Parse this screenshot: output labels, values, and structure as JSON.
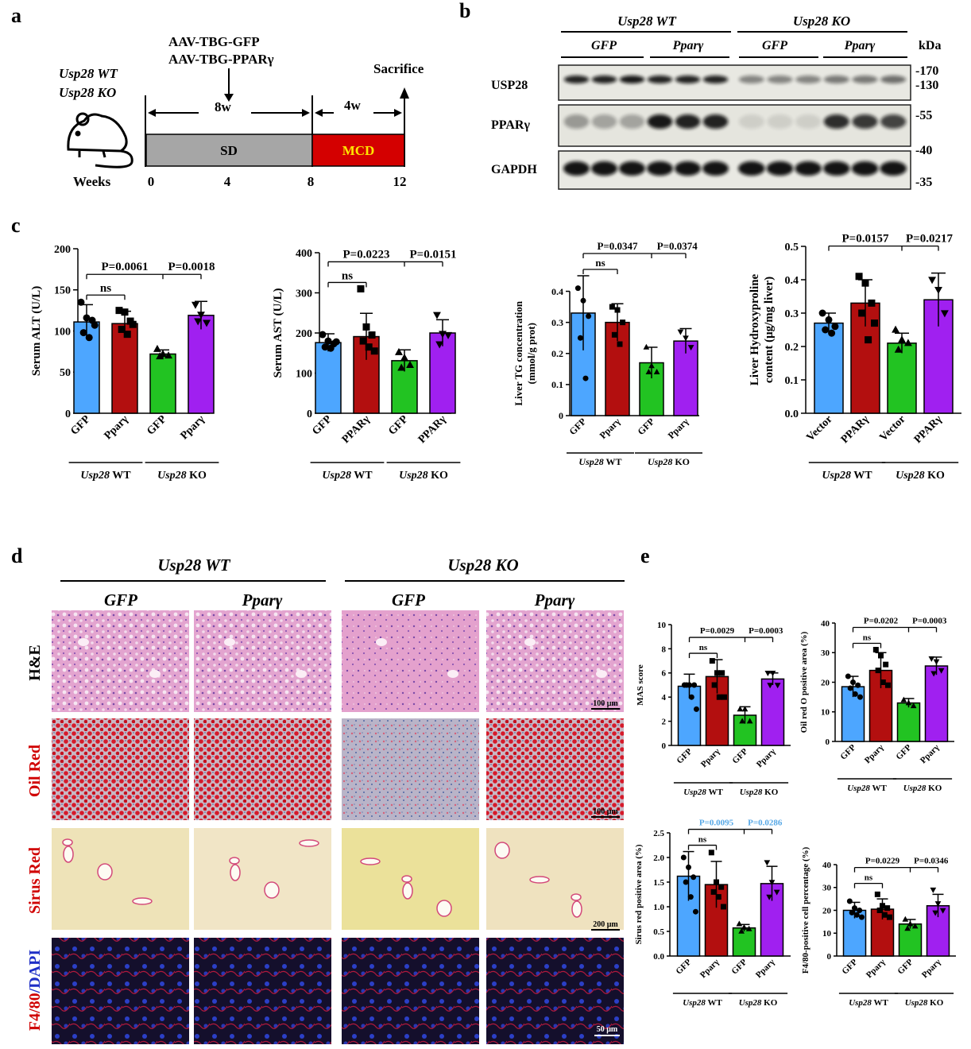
{
  "panel_labels": [
    "a",
    "b",
    "c",
    "d",
    "e"
  ],
  "colors": {
    "gfp_wt": "#4da6ff",
    "ppar_wt": "#b30f0f",
    "gfp_ko": "#22c322",
    "ppar_ko": "#a020f0",
    "sd": "#a6a6a6",
    "mcd": "#d40000",
    "mcd_text": "#ffe600",
    "blue_p": "#57a8e6"
  },
  "panel_a": {
    "genotypes": [
      "Usp28 WT",
      "Usp28 KO"
    ],
    "aav": [
      "AAV-TBG-GFP",
      "AAV-TBG-PPARγ"
    ],
    "sacrifice": "Sacrifice",
    "period1": "8w",
    "period2": "4w",
    "diet1": "SD",
    "diet2": "MCD",
    "weeks_label": "Weeks",
    "ticks": [
      "0",
      "4",
      "8",
      "12"
    ],
    "mouse_icon": "mouse-icon"
  },
  "panel_b": {
    "groups": [
      "Usp28 WT",
      "Usp28 KO"
    ],
    "subgroups": [
      "GFP",
      "Pparγ",
      "GFP",
      "Pparγ"
    ],
    "kda": "kDa",
    "blots": [
      {
        "label": "USP28",
        "markers": [
          "-170",
          "-130"
        ]
      },
      {
        "label": "PPARγ",
        "markers": [
          "-55",
          "-40"
        ]
      },
      {
        "label": "GAPDH",
        "markers": [
          "-35"
        ]
      }
    ]
  },
  "panel_d": {
    "groups": [
      "Usp28 WT",
      "Usp28 KO"
    ],
    "columns": [
      "GFP",
      "Pparγ",
      "GFP",
      "Pparγ"
    ],
    "rows": [
      "H&E",
      "Oil Red",
      "Sirus Red",
      "F4/80",
      "/DAPI"
    ],
    "scale_bars": [
      "100 μm",
      "100 μm",
      "200 μm",
      "50 μm"
    ]
  },
  "chart_data": [
    {
      "id": "alt",
      "type": "bar",
      "ylabel": "Serum ALT (U/L)",
      "ylim": [
        0,
        200
      ],
      "yticks": [
        "0",
        "50",
        "100",
        "150",
        "200"
      ],
      "categories": [
        "GFP",
        "Pparγ",
        "GFP",
        "Pparγ"
      ],
      "groups": [
        "Usp28 WT",
        "Usp28 KO"
      ],
      "values": [
        111,
        109,
        72,
        119
      ],
      "sd": [
        21,
        15,
        5,
        17
      ],
      "points": [
        [
          135,
          116,
          113,
          98,
          92,
          107
        ],
        [
          125,
          123,
          112,
          102,
          96,
          108
        ],
        [
          78,
          72,
          70,
          69
        ],
        [
          132,
          120,
          110,
          112
        ]
      ],
      "ns": "ns",
      "pvalues": [
        "P=0.0061",
        "P=0.0018"
      ]
    },
    {
      "id": "ast",
      "type": "bar",
      "ylabel": "Serum AST (U/L)",
      "ylim": [
        0,
        400
      ],
      "yticks": [
        "0",
        "100",
        "200",
        "300",
        "400"
      ],
      "categories": [
        "GFP",
        "PPARγ",
        "GFP",
        "PPARγ"
      ],
      "groups": [
        "Usp28 WT",
        "Usp28 KO"
      ],
      "values": [
        176,
        191,
        131,
        200
      ],
      "sd": [
        22,
        58,
        27,
        33
      ],
      "points": [
        [
          196,
          180,
          173,
          165,
          162,
          178
        ],
        [
          310,
          215,
          195,
          180,
          165,
          155
        ],
        [
          152,
          138,
          120,
          113
        ],
        [
          245,
          198,
          195,
          172
        ]
      ],
      "ns": "ns",
      "pvalues": [
        "P=0.0223",
        "P=0.0151"
      ]
    },
    {
      "id": "tg",
      "type": "bar",
      "ylabel": "Liver TG concentration",
      "ylabel2": "(mmol/g prot)",
      "ylim": [
        0,
        0.45
      ],
      "yticks": [
        "0",
        "0.1",
        "0.2",
        "0.3",
        "0.4"
      ],
      "categories": [
        "GFP",
        "Pparγ",
        "GFP",
        "Pparγ"
      ],
      "groups": [
        "Usp28 WT",
        "Usp28 KO"
      ],
      "values": [
        0.33,
        0.3,
        0.17,
        0.24
      ],
      "sd": [
        0.12,
        0.06,
        0.05,
        0.04
      ],
      "points": [
        [
          0.41,
          0.37,
          0.32,
          0.25,
          0.12
        ],
        [
          0.35,
          0.34,
          0.3,
          0.26,
          0.23
        ],
        [
          0.22,
          0.16,
          0.14,
          0.14
        ],
        [
          0.27,
          0.25,
          0.22
        ]
      ],
      "ns": "ns",
      "pvalues": [
        "P=0.0347",
        "P=0.0374"
      ]
    },
    {
      "id": "hyp",
      "type": "bar",
      "ylabel": "Liver Hydroxyproline",
      "ylabel2": "content (μg/mg liver)",
      "ylim": [
        0,
        0.5
      ],
      "yticks": [
        "0.0",
        "0.1",
        "0.2",
        "0.3",
        "0.4",
        "0.5"
      ],
      "categories": [
        "Vector",
        "PPARγ",
        "Vector",
        "PPARγ"
      ],
      "groups": [
        "Usp28 WT",
        "Usp28 KO"
      ],
      "values": [
        0.27,
        0.33,
        0.21,
        0.34
      ],
      "sd": [
        0.03,
        0.07,
        0.03,
        0.08
      ],
      "points": [
        [
          0.3,
          0.28,
          0.26,
          0.25,
          0.24
        ],
        [
          0.41,
          0.39,
          0.33,
          0.3,
          0.22,
          0.27
        ],
        [
          0.25,
          0.22,
          0.21,
          0.19
        ],
        [
          0.4,
          0.37,
          0.3
        ]
      ],
      "ns": "",
      "pvalues": [
        "P=0.0157",
        "P=0.0217"
      ]
    },
    {
      "id": "mas",
      "type": "bar",
      "ylabel": "MAS score",
      "ylim": [
        0,
        10
      ],
      "yticks": [
        "0",
        "2",
        "4",
        "6",
        "8",
        "10"
      ],
      "categories": [
        "GFP",
        "Pparγ",
        "GFP",
        "Pparγ"
      ],
      "groups": [
        "Usp28 WT",
        "Usp28 KO"
      ],
      "values": [
        4.9,
        5.7,
        2.5,
        5.5
      ],
      "sd": [
        1.0,
        1.4,
        0.7,
        0.5
      ],
      "points": [
        [
          5,
          5,
          5,
          5,
          4,
          3
        ],
        [
          7,
          6,
          6,
          5,
          4,
          4
        ],
        [
          3,
          3,
          2,
          2
        ],
        [
          6,
          6,
          5,
          5
        ]
      ],
      "ns": "ns",
      "pvalues": [
        "P=0.0029",
        "P=0.0003"
      ]
    },
    {
      "id": "oil",
      "type": "bar",
      "ylabel": "Oil red O positive area (%)",
      "ylim": [
        0,
        40
      ],
      "yticks": [
        "0",
        "10",
        "20",
        "30",
        "40"
      ],
      "categories": [
        "GFP",
        "Pparγ",
        "GFP",
        "Pparγ"
      ],
      "groups": [
        "Usp28 WT",
        "Usp28 KO"
      ],
      "values": [
        18.5,
        24,
        13,
        25.5
      ],
      "sd": [
        3.5,
        6,
        1.5,
        3
      ],
      "points": [
        [
          22,
          20,
          19,
          18,
          16,
          15
        ],
        [
          31,
          29,
          26,
          24,
          20,
          19
        ],
        [
          14,
          13,
          12
        ],
        [
          28,
          27,
          24,
          23
        ]
      ],
      "ns": "ns",
      "pvalues": [
        "P=0.0202",
        "P=0.0003"
      ]
    },
    {
      "id": "sirus",
      "type": "bar",
      "ylabel": "Sirus red positive area (%)",
      "ylim": [
        0,
        2.5
      ],
      "yticks": [
        "0.0",
        "0.5",
        "1.0",
        "1.5",
        "2.0",
        "2.5"
      ],
      "categories": [
        "GFP",
        "Pparγ",
        "GFP",
        "Pparγ"
      ],
      "groups": [
        "Usp28 WT",
        "Usp28 KO"
      ],
      "values": [
        1.62,
        1.45,
        0.57,
        1.47
      ],
      "sd": [
        0.5,
        0.47,
        0.07,
        0.35
      ],
      "points": [
        [
          2.0,
          1.8,
          1.6,
          1.5,
          1.2,
          0.9
        ],
        [
          2.1,
          1.5,
          1.4,
          1.3,
          1.2,
          1.0
        ],
        [
          0.65,
          0.58,
          0.55,
          0.5
        ],
        [
          1.9,
          1.5,
          1.3,
          1.2
        ]
      ],
      "ns": "ns",
      "pvalues": [
        "P=0.0095",
        "P=0.0286"
      ]
    },
    {
      "id": "f480",
      "type": "bar",
      "ylabel": "F4/80-positive cell percentage (%)",
      "ylim": [
        0,
        40
      ],
      "yticks": [
        "0",
        "10",
        "20",
        "30",
        "40"
      ],
      "categories": [
        "GFP",
        "Pparγ",
        "GFP",
        "Pparγ"
      ],
      "groups": [
        "Usp28 WT",
        "Usp28 KO"
      ],
      "values": [
        20,
        20.5,
        14,
        22
      ],
      "sd": [
        3.5,
        4.5,
        2,
        5
      ],
      "points": [
        [
          24,
          21,
          20,
          19,
          18,
          17
        ],
        [
          27,
          22,
          21,
          20,
          18,
          17
        ],
        [
          16,
          14,
          13,
          12
        ],
        [
          29,
          23,
          20,
          19
        ]
      ],
      "ns": "ns",
      "pvalues": [
        "P=0.0229",
        "P=0.0346"
      ]
    }
  ]
}
